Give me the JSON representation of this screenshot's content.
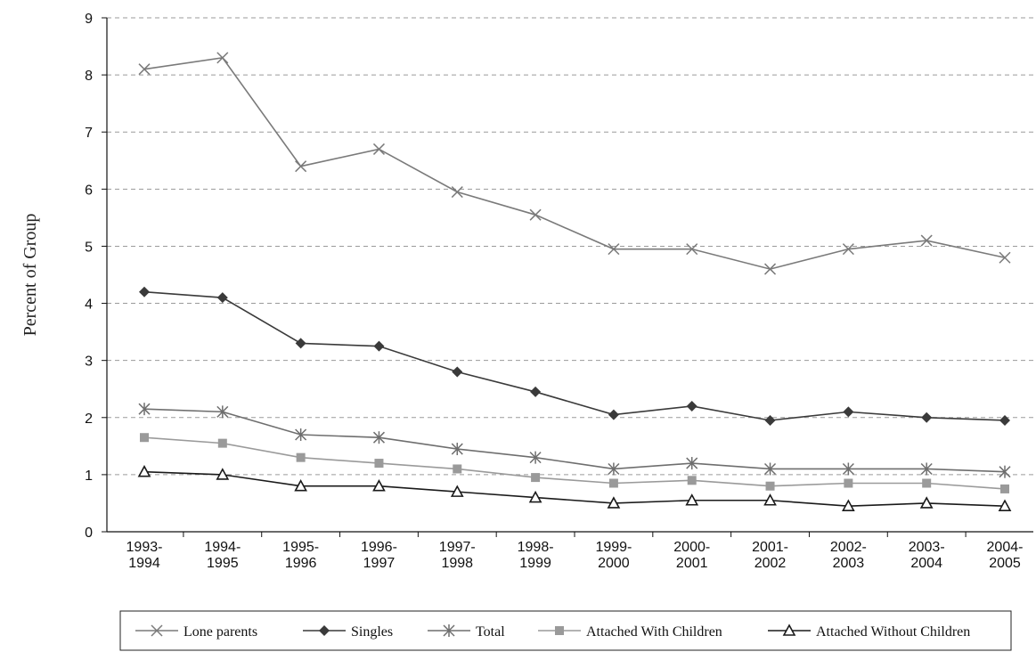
{
  "chart_data": {
    "type": "line",
    "title": "",
    "xlabel": "",
    "ylabel": "Percent of Group",
    "ylim": [
      0,
      9
    ],
    "yticks": [
      0,
      1,
      2,
      3,
      4,
      5,
      6,
      7,
      8,
      9
    ],
    "grid": "horizontal dashed",
    "legend_position": "bottom",
    "categories": [
      [
        "1993-",
        "1994"
      ],
      [
        "1994-",
        "1995"
      ],
      [
        "1995-",
        "1996"
      ],
      [
        "1996-",
        "1997"
      ],
      [
        "1997-",
        "1998"
      ],
      [
        "1998-",
        "1999"
      ],
      [
        "1999-",
        "2000"
      ],
      [
        "2000-",
        "2001"
      ],
      [
        "2001-",
        "2002"
      ],
      [
        "2002-",
        "2003"
      ],
      [
        "2003-",
        "2004"
      ],
      [
        "2004-",
        "2005"
      ]
    ],
    "series": [
      {
        "name": "Lone parents",
        "marker": "x",
        "color": "#7a7a7a",
        "values": [
          8.1,
          8.3,
          6.4,
          6.7,
          5.95,
          5.55,
          4.95,
          4.95,
          4.6,
          4.95,
          5.1,
          4.8
        ]
      },
      {
        "name": "Singles",
        "marker": "diamond",
        "color": "#3a3a3a",
        "values": [
          4.2,
          4.1,
          3.3,
          3.25,
          2.8,
          2.45,
          2.05,
          2.2,
          1.95,
          2.1,
          2.0,
          1.95
        ]
      },
      {
        "name": "Total",
        "marker": "asterisk",
        "color": "#6e6e6e",
        "values": [
          2.15,
          2.1,
          1.7,
          1.65,
          1.45,
          1.3,
          1.1,
          1.2,
          1.1,
          1.1,
          1.1,
          1.05
        ]
      },
      {
        "name": "Attached With Children",
        "marker": "square",
        "color": "#9a9a9a",
        "values": [
          1.65,
          1.55,
          1.3,
          1.2,
          1.1,
          0.95,
          0.85,
          0.9,
          0.8,
          0.85,
          0.85,
          0.75
        ]
      },
      {
        "name": "Attached Without Children",
        "marker": "triangle",
        "color": "#1a1a1a",
        "values": [
          1.05,
          1.0,
          0.8,
          0.8,
          0.7,
          0.6,
          0.5,
          0.55,
          0.55,
          0.45,
          0.5,
          0.45
        ]
      }
    ]
  }
}
